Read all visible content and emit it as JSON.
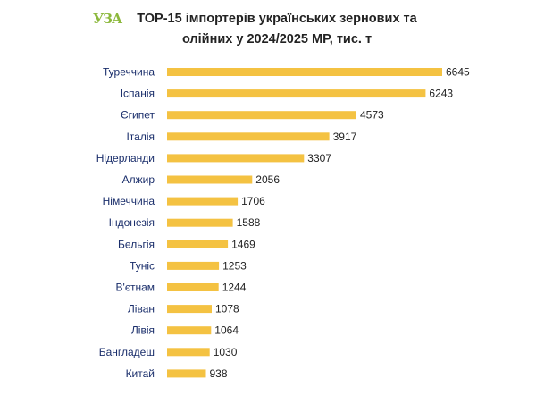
{
  "logo": {
    "text": "УЗА",
    "color": "#8cb83c"
  },
  "title": {
    "line1": "ТОР-15 імпортерів українських зернових та",
    "line2": "олійних у 2024/2025 МР, тис. т"
  },
  "chart_data": {
    "type": "bar",
    "orientation": "horizontal",
    "title": "ТОР-15 імпортерів українських зернових та олійних у 2024/2025 МР, тис. т",
    "categories": [
      "Туреччина",
      "Іспанія",
      "Єгипет",
      "Італія",
      "Нідерланди",
      "Алжир",
      "Німеччина",
      "Індонезія",
      "Бельгія",
      "Туніс",
      "В'єтнам",
      "Ліван",
      "Лівія",
      "Бангладеш",
      "Китай"
    ],
    "values": [
      6645,
      6243,
      4573,
      3917,
      3307,
      2056,
      1706,
      1588,
      1469,
      1253,
      1244,
      1078,
      1064,
      1030,
      938
    ],
    "xlim": [
      0,
      6645
    ],
    "grid": false,
    "legend": "none",
    "bar_color": "#f4c242",
    "label_color": "#1a2e6b"
  }
}
